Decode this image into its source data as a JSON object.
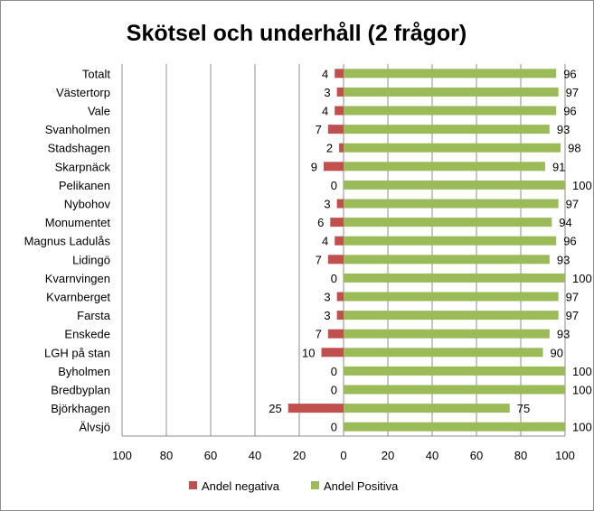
{
  "chart_data": {
    "type": "bar",
    "orientation": "horizontal",
    "title": "Skötsel och underhåll (2 frågor)",
    "categories": [
      "Totalt",
      "Västertorp",
      "Vale",
      "Svanholmen",
      "Stadshagen",
      "Skarpnäck",
      "Pelikanen",
      "Nybohov",
      "Monumentet",
      "Magnus Ladulås",
      "Lidingö",
      "Kvarnvingen",
      "Kvarnberget",
      "Farsta",
      "Enskede",
      "LGH på stan",
      "Byholmen",
      "Bredbyplan",
      "Björkhagen",
      "Älvsjö"
    ],
    "series": [
      {
        "name": "Andel negativa",
        "color": "#c0504d",
        "direction": "left",
        "values": [
          4,
          3,
          4,
          7,
          2,
          9,
          0,
          3,
          6,
          4,
          7,
          0,
          3,
          3,
          7,
          10,
          0,
          0,
          25,
          0
        ]
      },
      {
        "name": "Andel Positiva",
        "color": "#9bbb59",
        "direction": "right",
        "values": [
          96,
          97,
          96,
          93,
          98,
          91,
          100,
          97,
          94,
          96,
          93,
          100,
          97,
          97,
          93,
          90,
          100,
          100,
          75,
          100
        ]
      }
    ],
    "x_ticks": [
      "100",
      "80",
      "60",
      "40",
      "20",
      "0",
      "20",
      "40",
      "60",
      "80",
      "100"
    ],
    "xlim": [
      -100,
      100
    ],
    "grid": "vertical",
    "legend_position": "bottom"
  }
}
